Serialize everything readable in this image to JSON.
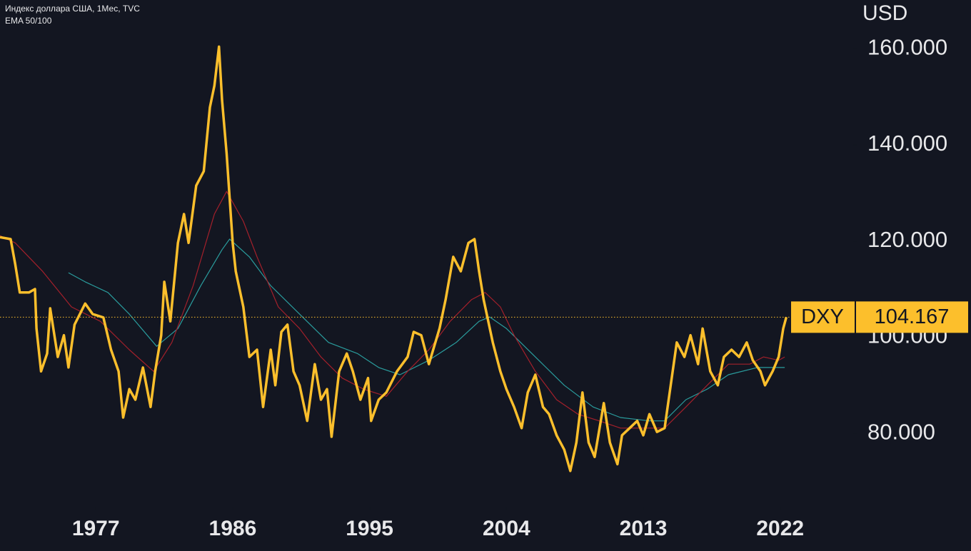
{
  "chart_data": {
    "type": "line",
    "title": "Индекс доллара США, 1Мес, TVC",
    "subtitle": "EMA 50/100",
    "y_axis_label": "USD",
    "xlim": [
      1970.7,
      2026.8
    ],
    "ylim": [
      64.75,
      170.1
    ],
    "xticks": [
      1977,
      1986,
      1995,
      2004,
      2013,
      2022
    ],
    "yticks": [
      {
        "value": 160,
        "label": "160.000"
      },
      {
        "value": 140,
        "label": "140.000"
      },
      {
        "value": 120,
        "label": "120.000"
      },
      {
        "value": 100,
        "label": "100.000"
      },
      {
        "value": 80,
        "label": "80.000"
      }
    ],
    "grid": false,
    "series": [
      {
        "name": "DXY",
        "color": "#fcbf2c",
        "width": 3.5,
        "x": [
          1970.7,
          1971.4,
          1971.7,
          1972.0,
          1972.6,
          1973.0,
          1973.1,
          1973.4,
          1973.8,
          1974.0,
          1974.5,
          1974.9,
          1975.2,
          1975.6,
          1976.3,
          1976.8,
          1977.5,
          1978.0,
          1978.5,
          1978.8,
          1979.2,
          1979.6,
          1980.1,
          1980.6,
          1980.9,
          1981.3,
          1981.5,
          1981.9,
          1982.4,
          1982.8,
          1983.1,
          1983.6,
          1984.1,
          1984.5,
          1984.8,
          1985.1,
          1985.3,
          1985.6,
          1986.0,
          1986.2,
          1986.7,
          1987.1,
          1987.6,
          1988.0,
          1988.5,
          1988.8,
          1989.2,
          1989.6,
          1990.0,
          1990.4,
          1990.9,
          1991.4,
          1991.8,
          1992.2,
          1992.5,
          1993.0,
          1993.5,
          1993.9,
          1994.4,
          1994.9,
          1995.1,
          1995.6,
          1996.1,
          1996.8,
          1997.5,
          1997.9,
          1998.4,
          1998.9,
          1999.6,
          2000.0,
          2000.5,
          2001.0,
          2001.5,
          2001.9,
          2002.2,
          2002.5,
          2003.1,
          2003.6,
          2004.0,
          2004.5,
          2005.0,
          2005.4,
          2005.9,
          2006.4,
          2006.8,
          2007.3,
          2007.8,
          2008.2,
          2008.6,
          2009.0,
          2009.4,
          2009.8,
          2010.4,
          2010.8,
          2011.3,
          2011.6,
          2012.1,
          2012.6,
          2013.0,
          2013.4,
          2013.9,
          2014.4,
          2014.8,
          2015.2,
          2015.7,
          2016.1,
          2016.6,
          2016.9,
          2017.4,
          2017.9,
          2018.3,
          2018.8,
          2019.3,
          2019.8,
          2020.2,
          2020.7,
          2021.0,
          2021.5,
          2021.9,
          2022.2,
          2022.4
        ],
        "values": [
          120.8,
          120.4,
          115.2,
          109.3,
          109.3,
          110.0,
          101.8,
          92.9,
          96.6,
          106.0,
          95.9,
          100.4,
          93.7,
          102.6,
          107.0,
          104.8,
          104.1,
          97.4,
          92.9,
          83.3,
          89.2,
          87.0,
          93.7,
          85.5,
          92.9,
          100.4,
          111.5,
          103.3,
          119.6,
          125.6,
          119.6,
          131.5,
          134.5,
          147.8,
          152.3,
          160.4,
          149.3,
          138.2,
          119.6,
          113.7,
          106.3,
          95.9,
          97.4,
          85.5,
          97.4,
          90.0,
          101.1,
          102.6,
          92.9,
          90.0,
          82.6,
          94.4,
          87.0,
          89.2,
          79.3,
          92.9,
          96.6,
          92.9,
          87.0,
          91.5,
          82.6,
          87.0,
          88.5,
          92.9,
          95.9,
          101.1,
          100.4,
          94.4,
          101.8,
          107.8,
          116.7,
          113.7,
          119.6,
          120.4,
          113.7,
          107.8,
          98.9,
          92.9,
          89.2,
          85.5,
          81.1,
          88.5,
          92.2,
          85.5,
          84.0,
          79.6,
          76.6,
          72.2,
          78.1,
          88.5,
          78.1,
          75.1,
          86.3,
          78.1,
          73.6,
          79.6,
          81.1,
          82.6,
          79.6,
          84.0,
          80.3,
          81.1,
          90.0,
          98.9,
          95.9,
          100.4,
          94.4,
          101.8,
          92.9,
          90.0,
          95.9,
          97.4,
          95.9,
          98.9,
          95.2,
          92.9,
          90.0,
          92.9,
          95.9,
          101.8,
          104.167
        ]
      },
      {
        "color": "#a3202b",
        "width": 1.2,
        "x": [
          1970.7,
          1971.7,
          1973.5,
          1975.4,
          1977.3,
          1979.2,
          1980.8,
          1982.0,
          1983.4,
          1984.8,
          1985.6,
          1986.7,
          1987.6,
          1989.0,
          1990.4,
          1991.8,
          1993.2,
          1994.6,
          1996.1,
          1997.5,
          1998.9,
          2000.3,
          2001.7,
          2002.6,
          2003.6,
          2004.5,
          2005.9,
          2007.3,
          2008.7,
          2010.1,
          2011.5,
          2013.0,
          2014.4,
          2015.8,
          2017.2,
          2018.6,
          2020.0,
          2020.9,
          2021.9,
          2022.3
        ],
        "values": [
          121.1,
          119.6,
          113.7,
          106.3,
          103.3,
          97.4,
          92.9,
          98.9,
          110.7,
          125.6,
          130.3,
          124.1,
          116.7,
          106.3,
          101.8,
          95.9,
          91.5,
          89.2,
          87.7,
          92.9,
          97.4,
          103.3,
          107.8,
          109.3,
          106.3,
          100.4,
          92.9,
          87.0,
          84.0,
          82.6,
          81.1,
          81.1,
          81.1,
          85.5,
          90.0,
          94.4,
          94.4,
          95.9,
          95.2,
          95.9
        ]
      },
      {
        "color": "#2a9c9d",
        "width": 1.2,
        "x": [
          1975.2,
          1976.3,
          1977.8,
          1979.2,
          1981.0,
          1982.4,
          1983.9,
          1985.3,
          1985.8,
          1987.1,
          1988.5,
          1990.4,
          1992.3,
          1994.2,
          1995.6,
          1997.0,
          1998.9,
          2000.7,
          2002.2,
          2002.9,
          2004.0,
          2005.9,
          2007.8,
          2009.7,
          2011.5,
          2013.4,
          2014.4,
          2015.8,
          2017.2,
          2018.6,
          2020.5,
          2022.3
        ],
        "values": [
          113.4,
          111.5,
          109.3,
          104.8,
          98.1,
          101.8,
          110.7,
          118.2,
          120.4,
          116.7,
          110.7,
          104.8,
          98.9,
          96.6,
          93.7,
          92.2,
          95.2,
          98.9,
          103.3,
          104.2,
          101.8,
          95.9,
          90.0,
          85.5,
          83.3,
          82.6,
          82.6,
          87.0,
          89.2,
          92.2,
          93.7,
          93.7
        ]
      }
    ],
    "last_value": {
      "name": "DXY",
      "value": 104.167,
      "label": "104.167"
    }
  }
}
